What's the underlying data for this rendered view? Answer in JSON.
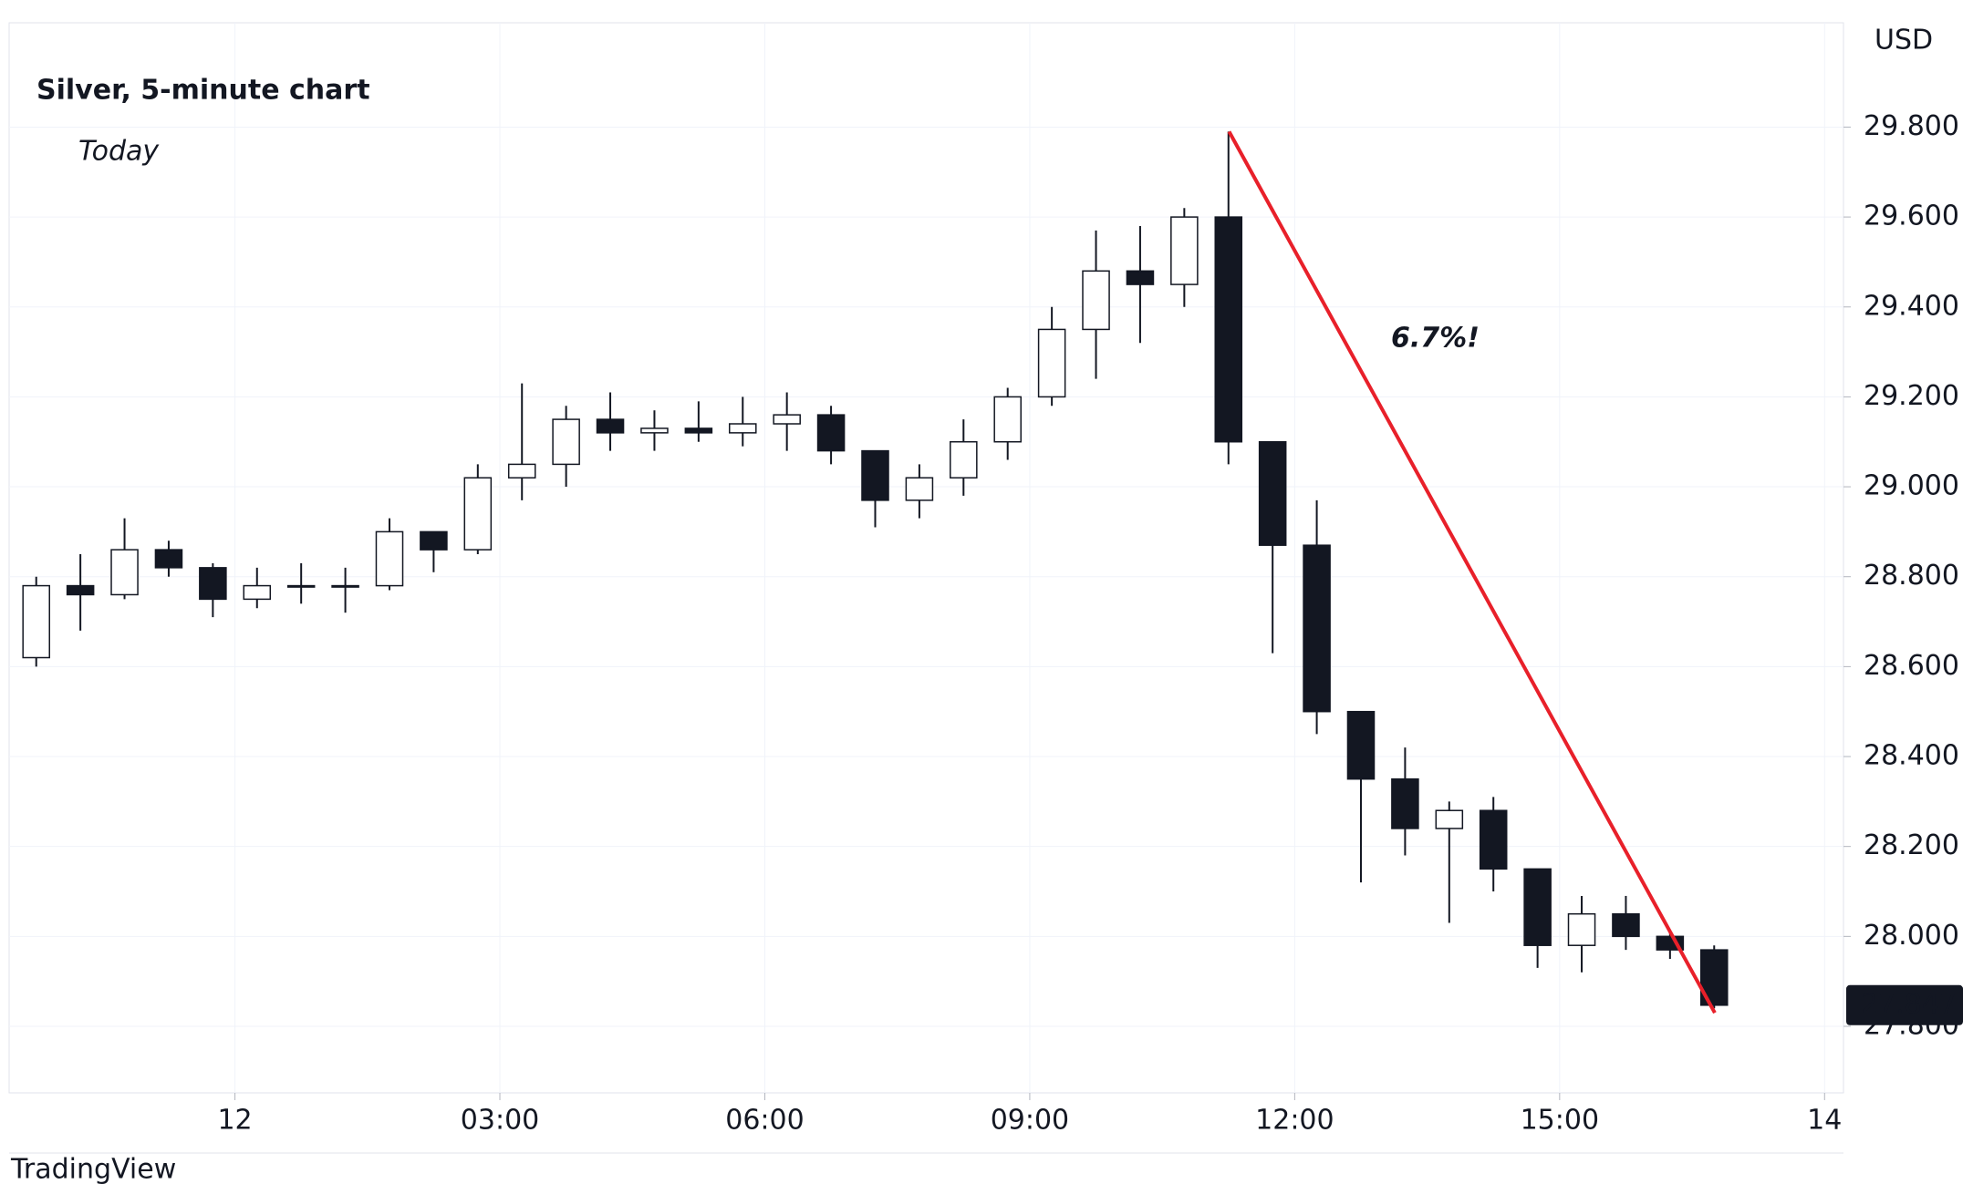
{
  "chart_data": {
    "type": "candlestick",
    "title": "Silver, 5-minute chart",
    "subtitle": "Today",
    "currency": "USD",
    "annotation": "6.7%!",
    "watermark": "TradingView",
    "x": [
      -2.25,
      -1.75,
      -1.25,
      -0.75,
      -0.25,
      0.25,
      0.75,
      1.25,
      1.75,
      2.25,
      2.75,
      3.25,
      3.75,
      4.25,
      4.75,
      5.25,
      5.75,
      6.25,
      6.75,
      7.25,
      7.75,
      8.25,
      8.75,
      9.25,
      9.75,
      10.25,
      10.75,
      11.25,
      11.75,
      12.25,
      12.75,
      13.25,
      13.75,
      14.25,
      14.75,
      15.25,
      15.75,
      16.25,
      16.75
    ],
    "open": [
      28.62,
      28.78,
      28.76,
      28.86,
      28.82,
      28.75,
      28.78,
      28.78,
      28.78,
      28.9,
      28.86,
      29.02,
      29.05,
      29.15,
      29.12,
      29.13,
      29.12,
      29.14,
      29.16,
      29.08,
      28.97,
      29.02,
      29.1,
      29.2,
      29.35,
      29.48,
      29.45,
      29.6,
      29.1,
      28.87,
      28.5,
      28.35,
      28.24,
      28.28,
      28.15,
      27.98,
      28.05,
      28.0,
      27.97
    ],
    "high": [
      28.8,
      28.85,
      28.93,
      28.88,
      28.83,
      28.82,
      28.83,
      28.82,
      28.93,
      28.9,
      29.05,
      29.23,
      29.18,
      29.21,
      29.17,
      29.19,
      29.2,
      29.21,
      29.18,
      29.08,
      29.05,
      29.15,
      29.22,
      29.4,
      29.57,
      29.58,
      29.62,
      29.79,
      29.1,
      28.97,
      28.5,
      28.42,
      28.3,
      28.31,
      28.15,
      28.09,
      28.09,
      28.01,
      27.98
    ],
    "low": [
      28.6,
      28.68,
      28.75,
      28.8,
      28.71,
      28.73,
      28.74,
      28.72,
      28.77,
      28.81,
      28.85,
      28.97,
      29.0,
      29.08,
      29.08,
      29.1,
      29.09,
      29.08,
      29.05,
      28.91,
      28.93,
      28.98,
      29.06,
      29.18,
      29.24,
      29.32,
      29.4,
      29.05,
      28.63,
      28.45,
      28.12,
      28.18,
      28.03,
      28.1,
      27.93,
      27.92,
      27.97,
      27.95,
      27.84
    ],
    "close": [
      28.78,
      28.76,
      28.86,
      28.82,
      28.75,
      28.78,
      28.78,
      28.78,
      28.9,
      28.86,
      29.02,
      29.05,
      29.15,
      29.12,
      29.13,
      29.12,
      29.14,
      29.16,
      29.08,
      28.97,
      29.02,
      29.1,
      29.2,
      29.35,
      29.48,
      29.45,
      29.6,
      29.1,
      28.87,
      28.5,
      28.35,
      28.24,
      28.28,
      28.15,
      27.98,
      28.05,
      28.0,
      27.97,
      27.847
    ],
    "last_price": 27.847,
    "trendline": {
      "x": [
        11.257,
        16.757
      ],
      "y": [
        29.79,
        27.83
      ],
      "color": "#e8202a"
    },
    "up_color": "#ffffff",
    "down_color": "#131722",
    "xlim": [
      -2.557,
      18.214
    ],
    "xticks": [
      {
        "value": 0,
        "label": "12"
      },
      {
        "value": 3,
        "label": "03:00"
      },
      {
        "value": 6,
        "label": "06:00"
      },
      {
        "value": 9,
        "label": "09:00"
      },
      {
        "value": 12,
        "label": "12:00"
      },
      {
        "value": 15,
        "label": "15:00"
      },
      {
        "value": 18,
        "label": "14"
      }
    ],
    "ylim": [
      27.652,
      30.032
    ],
    "yticks": [
      {
        "value": 27.8,
        "label": "27.800"
      },
      {
        "value": 28,
        "label": "28.000"
      },
      {
        "value": 28.2,
        "label": "28.200"
      },
      {
        "value": 28.4,
        "label": "28.400"
      },
      {
        "value": 28.6,
        "label": "28.600"
      },
      {
        "value": 28.8,
        "label": "28.800"
      },
      {
        "value": 29,
        "label": "29.000"
      },
      {
        "value": 29.2,
        "label": "29.200"
      },
      {
        "value": 29.4,
        "label": "29.400"
      },
      {
        "value": 29.6,
        "label": "29.600"
      },
      {
        "value": 29.8,
        "label": "29.800"
      }
    ],
    "grid": true
  }
}
